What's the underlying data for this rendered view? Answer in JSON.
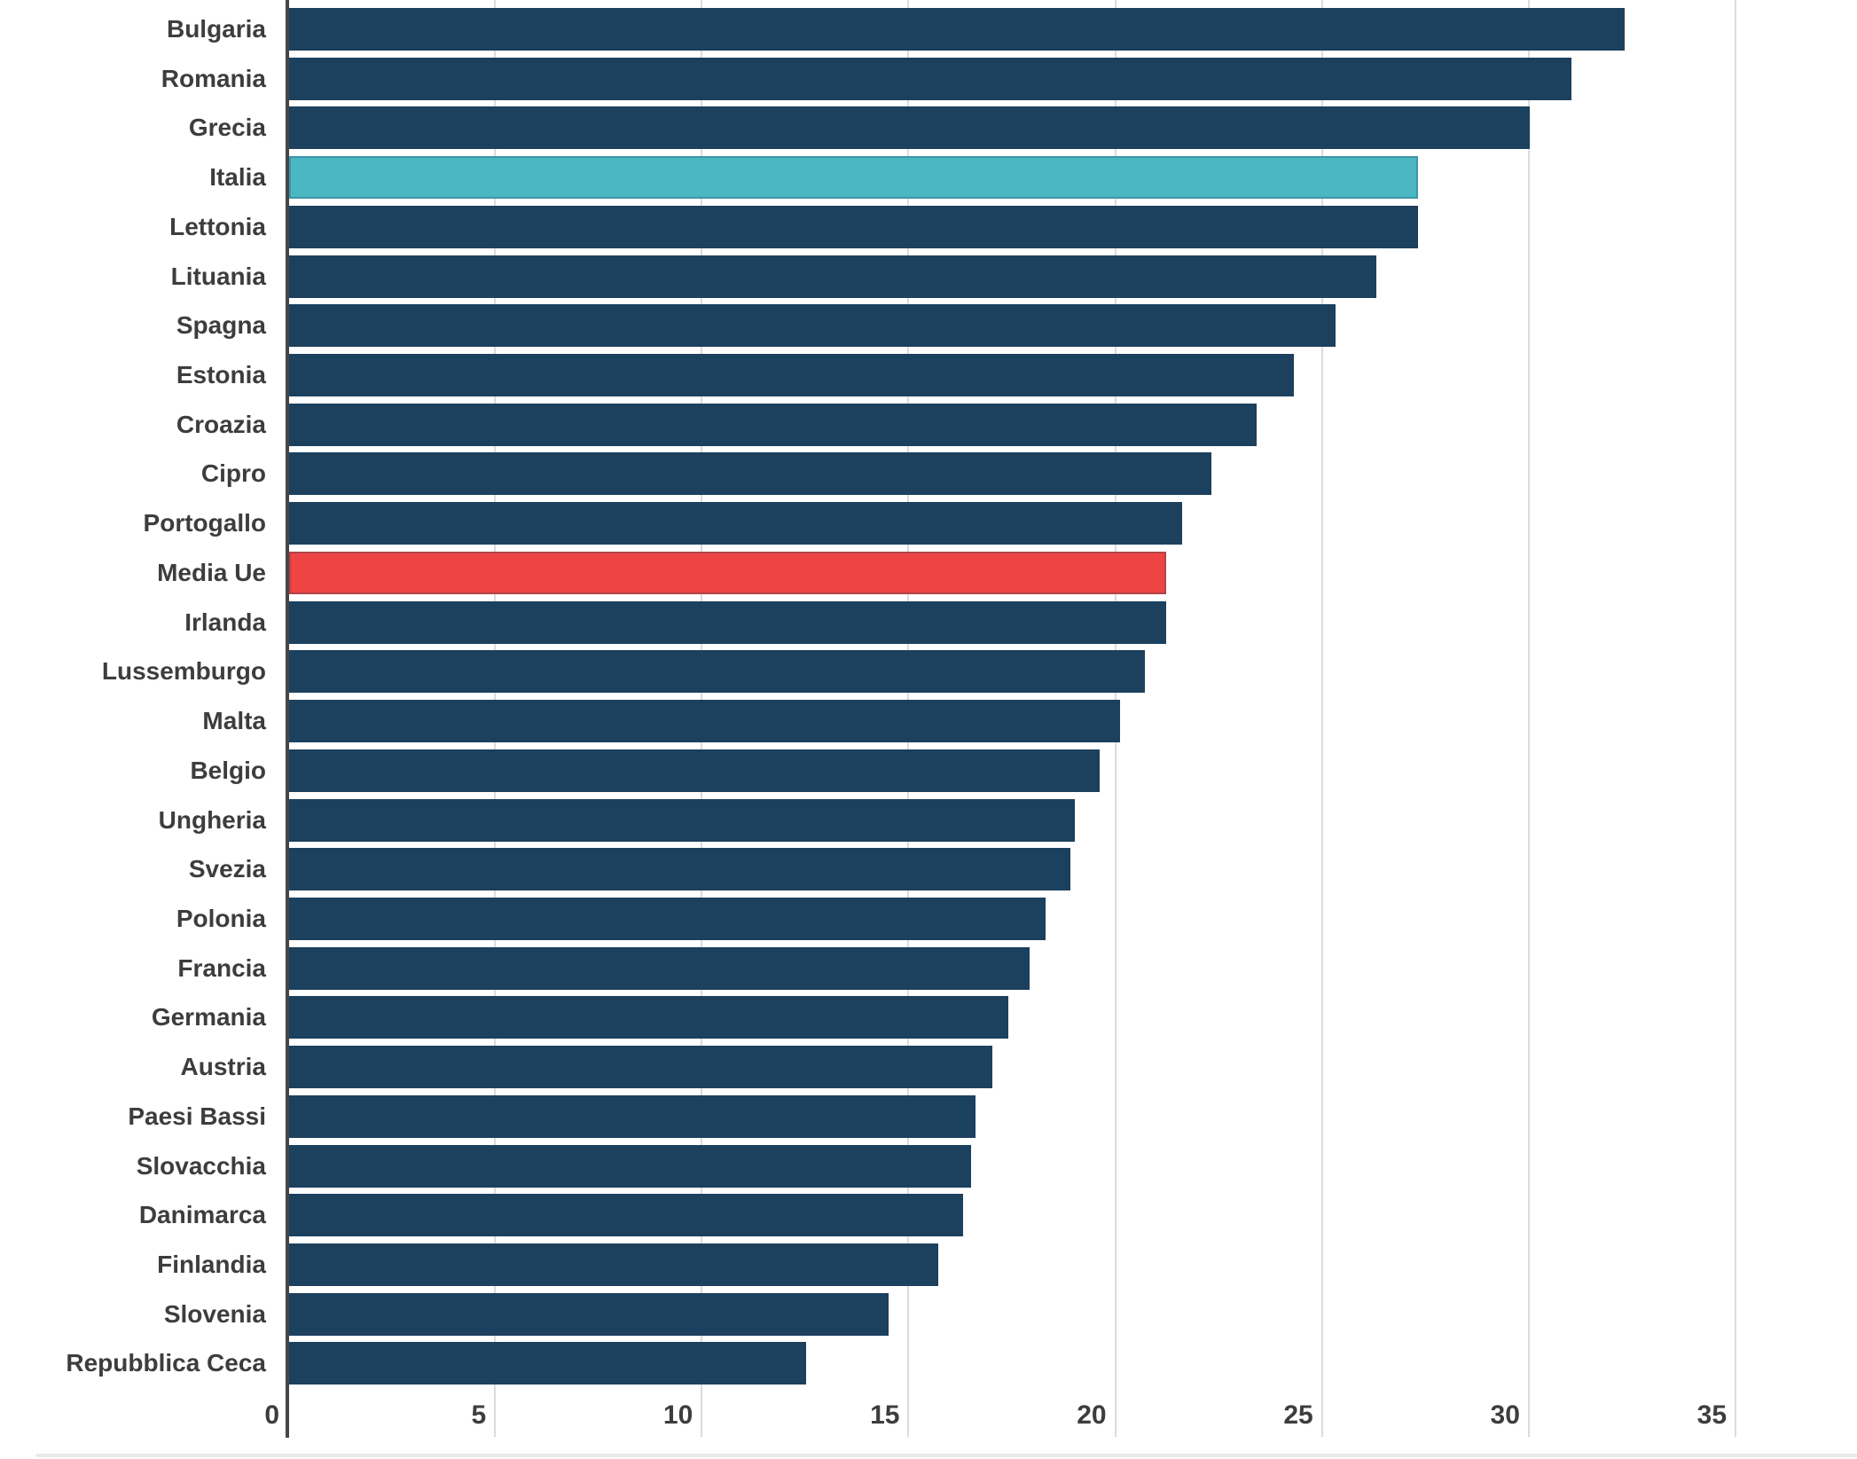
{
  "chart_data": {
    "type": "bar",
    "orientation": "horizontal",
    "title": "",
    "xlabel": "",
    "ylabel": "",
    "xlim": [
      0,
      35
    ],
    "x_ticks": [
      0,
      5,
      10,
      15,
      20,
      25,
      30,
      35
    ],
    "grid": "vertical-on",
    "legend": "none",
    "categories": [
      "Bulgaria",
      "Romania",
      "Grecia",
      "Italia",
      "Lettonia",
      "Lituania",
      "Spagna",
      "Estonia",
      "Croazia",
      "Cipro",
      "Portogallo",
      "Media Ue",
      "Irlanda",
      "Lussemburgo",
      "Malta",
      "Belgio",
      "Ungheria",
      "Svezia",
      "Polonia",
      "Francia",
      "Germania",
      "Austria",
      "Paesi Bassi",
      "Slovacchia",
      "Danimarca",
      "Finlandia",
      "Slovenia",
      "Repubblica Ceca"
    ],
    "values": [
      32.3,
      31.0,
      30.0,
      27.3,
      27.3,
      26.3,
      25.3,
      24.3,
      23.4,
      22.3,
      21.6,
      21.2,
      21.2,
      20.7,
      20.1,
      19.6,
      19.0,
      18.9,
      18.3,
      17.9,
      17.4,
      17.0,
      16.6,
      16.5,
      16.3,
      15.7,
      14.5,
      12.5
    ],
    "bar_color_keys": [
      "default",
      "default",
      "default",
      "highlight",
      "default",
      "default",
      "default",
      "default",
      "default",
      "default",
      "default",
      "average",
      "default",
      "default",
      "default",
      "default",
      "default",
      "default",
      "default",
      "default",
      "default",
      "default",
      "default",
      "default",
      "default",
      "default",
      "default",
      "default"
    ],
    "colors": {
      "default": "#1c415e",
      "highlight": "#4bb7c3",
      "average": "#ee4444",
      "gridline": "#dcdcdc",
      "axis": "#474747",
      "label_text": "#3d3d3d"
    }
  }
}
